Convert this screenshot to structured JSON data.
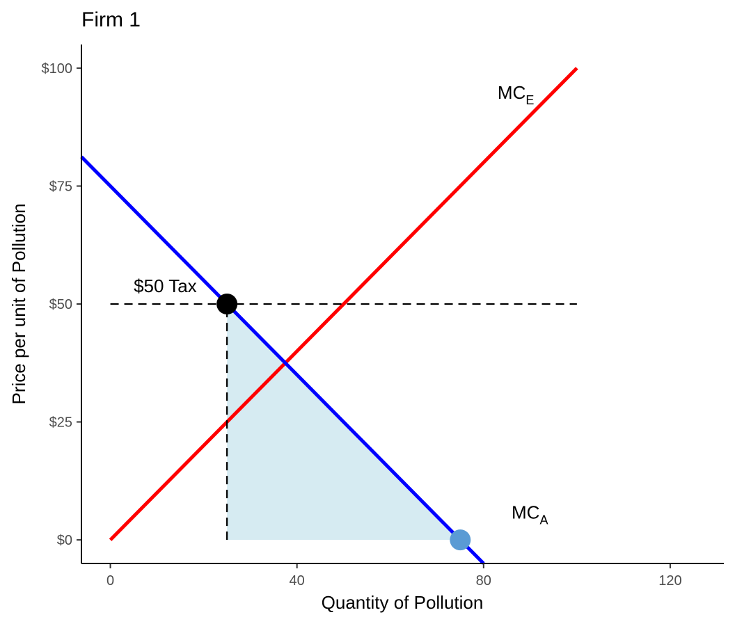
{
  "chart_data": {
    "type": "line",
    "title": "Firm 1",
    "xlabel": "Quantity of Pollution",
    "ylabel": "Price per unit of Pollution",
    "xlim": [
      -6.2,
      131.5
    ],
    "ylim": [
      -5,
      105
    ],
    "x_ticks": [
      0,
      40,
      80,
      120
    ],
    "x_tick_labels": [
      "0",
      "40",
      "80",
      "120"
    ],
    "y_ticks": [
      0,
      25,
      50,
      75,
      100
    ],
    "y_tick_labels": [
      "$0",
      "$25",
      "$50",
      "$75",
      "$100"
    ],
    "grid": false,
    "legend": "none",
    "series": [
      {
        "name": "MC_E",
        "color": "#ff0000",
        "x": [
          0,
          100
        ],
        "y": [
          0,
          100
        ]
      },
      {
        "name": "MC_A",
        "color": "#0000ff",
        "x": [
          -6.2,
          80
        ],
        "y": [
          81.2,
          -5
        ]
      }
    ],
    "tax_line": {
      "color": "#000000",
      "style": "dashed",
      "horizontal": {
        "x": [
          0,
          100
        ],
        "y": 50
      },
      "vertical": {
        "x": 25,
        "y": [
          0,
          50
        ]
      }
    },
    "shaded_region": {
      "color": "#add8e6",
      "opacity": 0.5,
      "points": [
        [
          25,
          50
        ],
        [
          75,
          0
        ],
        [
          25,
          0
        ]
      ]
    },
    "points": [
      {
        "x": 25,
        "y": 50,
        "color": "#000000"
      },
      {
        "x": 75,
        "y": 0,
        "color": "#5a9bd4"
      }
    ],
    "annotations": [
      {
        "main": "MC",
        "sub": "E",
        "x": 83,
        "y": 95
      },
      {
        "main": "MC",
        "sub": "A",
        "x": 86,
        "y": 6
      },
      {
        "main": "$50 Tax",
        "sub": "",
        "x": 5,
        "y": 54
      }
    ]
  }
}
